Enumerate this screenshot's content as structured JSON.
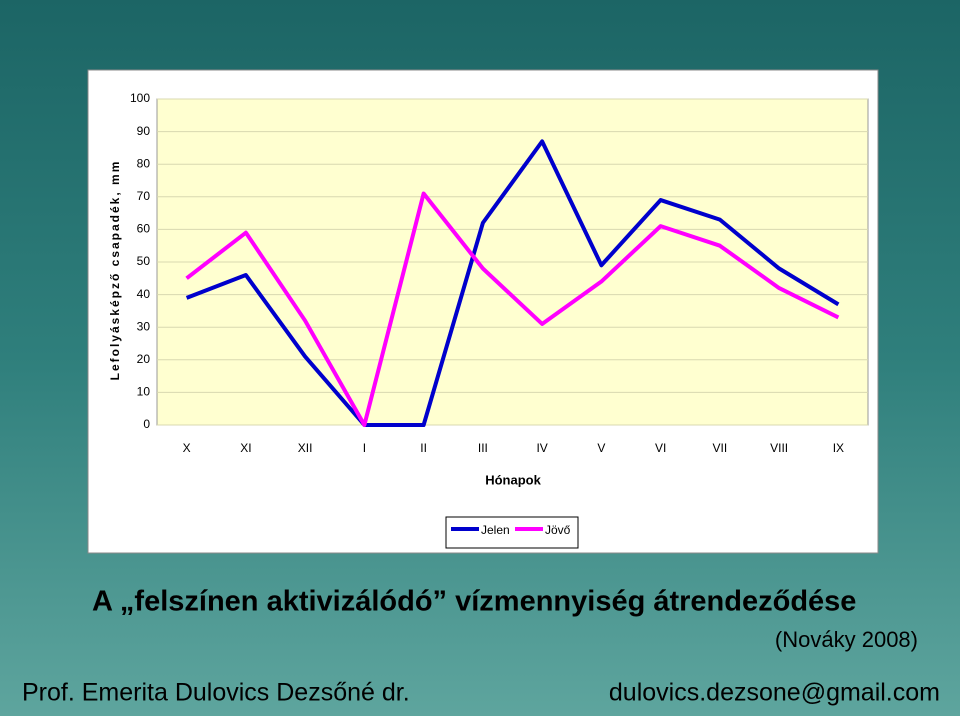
{
  "chart_data": {
    "type": "line",
    "xlabel": "Hónapok",
    "ylabel": "Lefolyásképző csapadék, mm",
    "categories": [
      "X",
      "XI",
      "XII",
      "I",
      "II",
      "III",
      "IV",
      "V",
      "VI",
      "VII",
      "VIII",
      "IX"
    ],
    "series": [
      {
        "name": "Jelen",
        "color": "#0000cc",
        "values": [
          39,
          46,
          21,
          0,
          0,
          62,
          87,
          49,
          69,
          63,
          48,
          37
        ]
      },
      {
        "name": "Jövő",
        "color": "#ff00ff",
        "values": [
          45,
          59,
          32,
          0,
          71,
          48,
          31,
          44,
          61,
          55,
          42,
          33
        ]
      }
    ],
    "ylim": [
      0,
      100
    ],
    "yticks": [
      0,
      10,
      20,
      30,
      40,
      50,
      60,
      70,
      80,
      90,
      100
    ],
    "grid": true
  },
  "slide": {
    "title": "A „felszínen aktivizálódó” vízmennyiség átrendeződése",
    "source": "(Nováky 2008)",
    "author": "Prof. Emerita Dulovics Dezsőné dr.",
    "email": "dulovics.dezsone@gmail.com"
  }
}
